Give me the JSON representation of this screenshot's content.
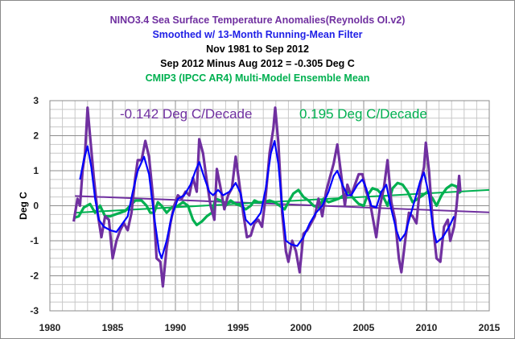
{
  "chart_data": {
    "type": "line",
    "title_lines": [
      {
        "text": "NINO3.4 Sea Surface Temperature Anomalies(Reynolds OI.v2)",
        "color": "#7030A0"
      },
      {
        "text": "Smoothed w/ 13-Month Running-Mean Filter",
        "color": "#1F1FE6"
      },
      {
        "text": "Nov 1981 to Sep 2012",
        "color": "#000000"
      },
      {
        "text": "Sep 2012 Minus Aug 2012 = -0.305 Deg C",
        "color": "#000000"
      },
      {
        "text": "CMIP3 (IPCC AR4) Multi-Model Ensemble Mean",
        "color": "#00B050"
      }
    ],
    "xlabel": "",
    "ylabel": "Deg C",
    "xlim": [
      1980,
      2015
    ],
    "ylim": [
      -3,
      3
    ],
    "xticks": [
      1980,
      1985,
      1990,
      1995,
      2000,
      2005,
      2010,
      2015
    ],
    "yticks": [
      -3,
      -2,
      -1,
      0,
      1,
      2,
      3
    ],
    "grid": true,
    "annotations": [
      {
        "text": "-0.142 Deg C/Decade",
        "color": "#7030A0"
      },
      {
        "text": "0.195 Deg C/Decade",
        "color": "#00B050"
      }
    ],
    "series": [
      {
        "color": "#7030A0",
        "width": "thick",
        "points": [
          [
            1981.9,
            -0.45
          ],
          [
            1982.2,
            0.2
          ],
          [
            1982.4,
            0.0
          ],
          [
            1982.6,
            1.0
          ],
          [
            1982.8,
            1.5
          ],
          [
            1983.0,
            2.8
          ],
          [
            1983.2,
            2.0
          ],
          [
            1983.5,
            0.8
          ],
          [
            1983.8,
            -0.2
          ],
          [
            1984.1,
            -0.9
          ],
          [
            1984.4,
            -0.3
          ],
          [
            1984.7,
            -0.4
          ],
          [
            1985.0,
            -1.5
          ],
          [
            1985.3,
            -1.0
          ],
          [
            1985.6,
            -0.7
          ],
          [
            1985.9,
            -0.5
          ],
          [
            1986.2,
            -0.7
          ],
          [
            1986.5,
            -0.2
          ],
          [
            1986.8,
            0.8
          ],
          [
            1987.0,
            1.3
          ],
          [
            1987.3,
            1.3
          ],
          [
            1987.6,
            1.85
          ],
          [
            1987.9,
            1.4
          ],
          [
            1988.2,
            0.3
          ],
          [
            1988.5,
            -1.5
          ],
          [
            1988.8,
            -1.6
          ],
          [
            1989.0,
            -2.3
          ],
          [
            1989.3,
            -1.2
          ],
          [
            1989.6,
            -0.5
          ],
          [
            1989.9,
            0.0
          ],
          [
            1990.2,
            0.3
          ],
          [
            1990.5,
            0.2
          ],
          [
            1990.8,
            0.4
          ],
          [
            1991.1,
            0.3
          ],
          [
            1991.4,
            0.8
          ],
          [
            1991.7,
            0.4
          ],
          [
            1991.9,
            1.9
          ],
          [
            1992.2,
            1.5
          ],
          [
            1992.5,
            0.7
          ],
          [
            1992.8,
            0.0
          ],
          [
            1993.1,
            -0.4
          ],
          [
            1993.3,
            1.05
          ],
          [
            1993.6,
            0.5
          ],
          [
            1993.9,
            -0.1
          ],
          [
            1994.2,
            0.3
          ],
          [
            1994.5,
            0.5
          ],
          [
            1994.8,
            1.4
          ],
          [
            1995.1,
            0.6
          ],
          [
            1995.4,
            -0.2
          ],
          [
            1995.7,
            -0.9
          ],
          [
            1996.0,
            -0.85
          ],
          [
            1996.3,
            -0.5
          ],
          [
            1996.6,
            -0.4
          ],
          [
            1996.9,
            -0.6
          ],
          [
            1997.2,
            0.3
          ],
          [
            1997.5,
            1.5
          ],
          [
            1997.8,
            2.2
          ],
          [
            1997.95,
            2.8
          ],
          [
            1998.2,
            1.8
          ],
          [
            1998.5,
            -0.2
          ],
          [
            1998.8,
            -1.3
          ],
          [
            1999.0,
            -1.6
          ],
          [
            1999.3,
            -1.0
          ],
          [
            1999.6,
            -1.3
          ],
          [
            1999.9,
            -1.9
          ],
          [
            2000.2,
            -0.8
          ],
          [
            2000.5,
            -0.7
          ],
          [
            2000.8,
            -0.5
          ],
          [
            2001.1,
            -0.3
          ],
          [
            2001.4,
            0.2
          ],
          [
            2001.7,
            -0.3
          ],
          [
            2002.0,
            0.4
          ],
          [
            2002.3,
            0.8
          ],
          [
            2002.6,
            1.2
          ],
          [
            2002.9,
            1.75
          ],
          [
            2003.2,
            0.9
          ],
          [
            2003.5,
            0.0
          ],
          [
            2003.7,
            0.6
          ],
          [
            2004.0,
            0.3
          ],
          [
            2004.3,
            0.6
          ],
          [
            2004.6,
            0.9
          ],
          [
            2004.9,
            0.9
          ],
          [
            2005.2,
            0.4
          ],
          [
            2005.5,
            0.1
          ],
          [
            2005.8,
            -0.5
          ],
          [
            2006.0,
            -0.9
          ],
          [
            2006.3,
            0.0
          ],
          [
            2006.6,
            0.5
          ],
          [
            2006.9,
            1.3
          ],
          [
            2007.2,
            0.1
          ],
          [
            2007.5,
            -0.4
          ],
          [
            2007.8,
            -1.5
          ],
          [
            2008.0,
            -1.9
          ],
          [
            2008.3,
            -1.0
          ],
          [
            2008.6,
            -0.2
          ],
          [
            2008.9,
            -0.3
          ],
          [
            2009.2,
            -0.5
          ],
          [
            2009.5,
            0.6
          ],
          [
            2009.8,
            1.1
          ],
          [
            2009.95,
            1.8
          ],
          [
            2010.2,
            1.0
          ],
          [
            2010.5,
            -0.5
          ],
          [
            2010.8,
            -1.5
          ],
          [
            2011.1,
            -1.6
          ],
          [
            2011.4,
            -0.6
          ],
          [
            2011.7,
            -0.4
          ],
          [
            2011.9,
            -1.0
          ],
          [
            2012.2,
            -0.6
          ],
          [
            2012.4,
            0.0
          ],
          [
            2012.6,
            0.85
          ],
          [
            2012.7,
            0.4
          ]
        ]
      },
      {
        "color": "#0000FF",
        "width": "medium",
        "points": [
          [
            1982.4,
            0.75
          ],
          [
            1982.7,
            1.3
          ],
          [
            1983.0,
            1.7
          ],
          [
            1983.3,
            1.1
          ],
          [
            1983.6,
            0.2
          ],
          [
            1983.9,
            -0.4
          ],
          [
            1984.3,
            -0.6
          ],
          [
            1984.8,
            -0.7
          ],
          [
            1985.3,
            -0.75
          ],
          [
            1985.8,
            -0.5
          ],
          [
            1986.2,
            -0.3
          ],
          [
            1986.6,
            0.4
          ],
          [
            1987.0,
            1.0
          ],
          [
            1987.5,
            1.4
          ],
          [
            1987.9,
            0.9
          ],
          [
            1988.3,
            -0.3
          ],
          [
            1988.7,
            -1.3
          ],
          [
            1988.9,
            -1.5
          ],
          [
            1989.3,
            -1.0
          ],
          [
            1989.7,
            -0.3
          ],
          [
            1990.2,
            0.2
          ],
          [
            1990.7,
            0.3
          ],
          [
            1991.2,
            0.6
          ],
          [
            1991.6,
            1.0
          ],
          [
            1991.9,
            1.25
          ],
          [
            1992.3,
            0.8
          ],
          [
            1992.7,
            0.4
          ],
          [
            1993.0,
            0.3
          ],
          [
            1993.4,
            0.45
          ],
          [
            1993.8,
            0.3
          ],
          [
            1994.3,
            0.4
          ],
          [
            1994.8,
            0.65
          ],
          [
            1995.2,
            0.35
          ],
          [
            1995.6,
            -0.4
          ],
          [
            1996.0,
            -0.55
          ],
          [
            1996.4,
            -0.4
          ],
          [
            1996.8,
            -0.2
          ],
          [
            1997.2,
            0.5
          ],
          [
            1997.6,
            1.5
          ],
          [
            1997.9,
            1.85
          ],
          [
            1998.2,
            1.2
          ],
          [
            1998.5,
            0.0
          ],
          [
            1998.8,
            -1.0
          ],
          [
            1999.2,
            -1.1
          ],
          [
            1999.7,
            -1.15
          ],
          [
            2000.2,
            -0.9
          ],
          [
            2000.7,
            -0.5
          ],
          [
            2001.2,
            -0.2
          ],
          [
            2001.7,
            0.0
          ],
          [
            2002.2,
            0.4
          ],
          [
            2002.6,
            0.85
          ],
          [
            2002.9,
            1.0
          ],
          [
            2003.3,
            0.6
          ],
          [
            2003.7,
            0.3
          ],
          [
            2004.0,
            0.3
          ],
          [
            2004.5,
            0.6
          ],
          [
            2004.9,
            0.75
          ],
          [
            2005.2,
            0.5
          ],
          [
            2005.6,
            0.0
          ],
          [
            2006.0,
            -0.05
          ],
          [
            2006.4,
            0.4
          ],
          [
            2006.8,
            0.6
          ],
          [
            2007.2,
            -0.1
          ],
          [
            2007.6,
            -0.7
          ],
          [
            2007.9,
            -1.0
          ],
          [
            2008.3,
            -0.8
          ],
          [
            2008.7,
            -0.3
          ],
          [
            2009.1,
            0.2
          ],
          [
            2009.5,
            0.7
          ],
          [
            2009.8,
            0.95
          ],
          [
            2010.2,
            0.3
          ],
          [
            2010.5,
            -0.6
          ],
          [
            2010.8,
            -1.05
          ],
          [
            2011.3,
            -0.9
          ],
          [
            2011.8,
            -0.6
          ],
          [
            2012.2,
            -0.3
          ]
        ]
      },
      {
        "color": "#00B050",
        "width": "thick",
        "points": [
          [
            1981.9,
            -0.35
          ],
          [
            1982.3,
            -0.3
          ],
          [
            1982.7,
            -0.05
          ],
          [
            1983.2,
            0.05
          ],
          [
            1983.6,
            -0.2
          ],
          [
            1984.0,
            0.0
          ],
          [
            1984.4,
            -0.3
          ],
          [
            1984.8,
            -0.3
          ],
          [
            1985.2,
            -0.25
          ],
          [
            1985.6,
            -0.2
          ],
          [
            1986.0,
            -0.15
          ],
          [
            1986.4,
            0.0
          ],
          [
            1986.8,
            0.15
          ],
          [
            1987.3,
            0.15
          ],
          [
            1987.7,
            0.0
          ],
          [
            1988.0,
            -0.2
          ],
          [
            1988.3,
            -0.2
          ],
          [
            1988.6,
            0.1
          ],
          [
            1988.9,
            0.0
          ],
          [
            1989.3,
            -0.2
          ],
          [
            1989.7,
            -0.05
          ],
          [
            1990.2,
            0.0
          ],
          [
            1990.6,
            0.1
          ],
          [
            1991.0,
            0.0
          ],
          [
            1991.4,
            -0.4
          ],
          [
            1991.7,
            -0.55
          ],
          [
            1992.1,
            -0.45
          ],
          [
            1992.5,
            -0.3
          ],
          [
            1992.9,
            -0.2
          ],
          [
            1993.2,
            0.2
          ],
          [
            1993.6,
            0.15
          ],
          [
            1994.0,
            0.0
          ],
          [
            1994.4,
            0.15
          ],
          [
            1994.8,
            0.05
          ],
          [
            1995.2,
            0.0
          ],
          [
            1995.6,
            -0.1
          ],
          [
            1996.0,
            0.0
          ],
          [
            1996.3,
            0.15
          ],
          [
            1996.6,
            0.1
          ],
          [
            1997.0,
            0.1
          ],
          [
            1997.5,
            0.15
          ],
          [
            1997.9,
            0.1
          ],
          [
            1998.3,
            0.0
          ],
          [
            1998.7,
            -0.1
          ],
          [
            1999.0,
            0.1
          ],
          [
            1999.4,
            0.35
          ],
          [
            1999.8,
            0.45
          ],
          [
            2000.2,
            0.25
          ],
          [
            2000.6,
            0.15
          ],
          [
            2001.0,
            0.0
          ],
          [
            2001.4,
            -0.05
          ],
          [
            2001.8,
            0.2
          ],
          [
            2002.2,
            0.1
          ],
          [
            2002.6,
            0.15
          ],
          [
            2003.0,
            0.2
          ],
          [
            2003.4,
            0.3
          ],
          [
            2003.8,
            0.4
          ],
          [
            2004.2,
            0.2
          ],
          [
            2004.6,
            0.05
          ],
          [
            2005.0,
            0.0
          ],
          [
            2005.3,
            0.3
          ],
          [
            2005.7,
            0.5
          ],
          [
            2006.1,
            0.45
          ],
          [
            2006.5,
            0.3
          ],
          [
            2006.9,
            0.0
          ],
          [
            2007.3,
            0.5
          ],
          [
            2007.7,
            0.65
          ],
          [
            2008.1,
            0.6
          ],
          [
            2008.5,
            0.4
          ],
          [
            2008.9,
            0.1
          ],
          [
            2009.3,
            0.2
          ],
          [
            2009.7,
            0.3
          ],
          [
            2010.1,
            0.4
          ],
          [
            2010.5,
            0.2
          ],
          [
            2010.8,
            0.0
          ],
          [
            2011.2,
            0.3
          ],
          [
            2011.6,
            0.5
          ],
          [
            2012.0,
            0.6
          ],
          [
            2012.4,
            0.55
          ],
          [
            2012.7,
            0.35
          ]
        ]
      }
    ],
    "trendlines": [
      {
        "color": "#7030A0",
        "points": [
          [
            1982,
            0.28
          ],
          [
            2015,
            -0.19
          ]
        ]
      },
      {
        "color": "#00B050",
        "points": [
          [
            1982,
            -0.2
          ],
          [
            2015,
            0.45
          ]
        ]
      }
    ]
  }
}
